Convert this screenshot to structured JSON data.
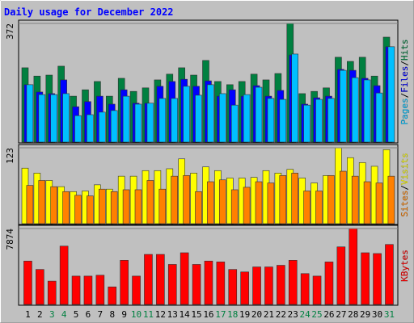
{
  "title": "Daily usage for December 2022",
  "chart_data": [
    {
      "type": "bar",
      "ylim": [
        0,
        372
      ],
      "yticks": [
        372
      ],
      "ylabel_separator": "/",
      "series": [
        {
          "name": "Hits",
          "color": "#008040",
          "values": [
            233,
            207,
            210,
            238,
            144,
            164,
            190,
            144,
            200,
            159,
            170,
            195,
            213,
            233,
            210,
            256,
            190,
            180,
            190,
            213,
            195,
            215,
            372,
            152,
            159,
            170,
            266,
            253,
            266,
            207,
            329
          ]
        },
        {
          "name": "Files",
          "color": "#0000ff",
          "values": [
            180,
            157,
            152,
            195,
            111,
            127,
            144,
            119,
            164,
            122,
            122,
            175,
            190,
            197,
            175,
            192,
            144,
            164,
            144,
            177,
            144,
            162,
            273,
            119,
            139,
            144,
            228,
            225,
            200,
            177,
            299
          ]
        },
        {
          "name": "Pages",
          "color": "#00c0ff",
          "values": [
            180,
            149,
            149,
            152,
            83,
            86,
            94,
            99,
            144,
            119,
            122,
            137,
            137,
            175,
            147,
            180,
            152,
            116,
            149,
            172,
            137,
            134,
            276,
            116,
            134,
            137,
            225,
            202,
            195,
            154,
            299
          ]
        }
      ]
    },
    {
      "type": "bar",
      "ylim": [
        0,
        123
      ],
      "yticks": [
        123
      ],
      "ylabel_separator": "/",
      "series": [
        {
          "name": "Visits",
          "color": "#ffff00",
          "values": [
            90,
            82,
            70,
            60,
            52,
            53,
            63,
            56,
            77,
            77,
            86,
            86,
            89,
            105,
            82,
            92,
            86,
            74,
            74,
            75,
            86,
            82,
            88,
            74,
            66,
            78,
            123,
            107,
            99,
            93,
            120
          ]
        },
        {
          "name": "Sites",
          "color": "#ff8000",
          "values": [
            62,
            70,
            60,
            52,
            46,
            45,
            56,
            52,
            55,
            55,
            70,
            56,
            77,
            78,
            52,
            68,
            71,
            55,
            59,
            68,
            66,
            78,
            82,
            53,
            53,
            78,
            85,
            77,
            68,
            66,
            77
          ]
        }
      ]
    },
    {
      "type": "bar",
      "ylim": [
        0,
        7874
      ],
      "yticks": [
        7874
      ],
      "ylabel_separator": "/",
      "series": [
        {
          "name": "KBytes",
          "color": "#ff0000",
          "values": [
            4500,
            3630,
            2420,
            6050,
            2940,
            2940,
            3030,
            1820,
            4580,
            2940,
            5190,
            5190,
            4150,
            5360,
            4150,
            4500,
            4410,
            3630,
            3370,
            3890,
            3890,
            4060,
            4580,
            3200,
            2940,
            4410,
            5970,
            7874,
            5360,
            5280,
            6220
          ]
        }
      ],
      "categories": [
        "1",
        "2",
        "3",
        "4",
        "5",
        "6",
        "7",
        "8",
        "9",
        "10",
        "11",
        "12",
        "13",
        "14",
        "15",
        "16",
        "17",
        "18",
        "19",
        "20",
        "21",
        "22",
        "23",
        "24",
        "25",
        "26",
        "27",
        "28",
        "29",
        "30",
        "31"
      ],
      "category_colors": [
        "#000000",
        "#000000",
        "#008040",
        "#008040",
        "#000000",
        "#000000",
        "#000000",
        "#000000",
        "#000000",
        "#008040",
        "#008040",
        "#000000",
        "#000000",
        "#000000",
        "#000000",
        "#000000",
        "#008040",
        "#008040",
        "#000000",
        "#000000",
        "#000000",
        "#000000",
        "#000000",
        "#008040",
        "#008040",
        "#000000",
        "#000000",
        "#000000",
        "#000000",
        "#000000",
        "#008040"
      ]
    }
  ]
}
